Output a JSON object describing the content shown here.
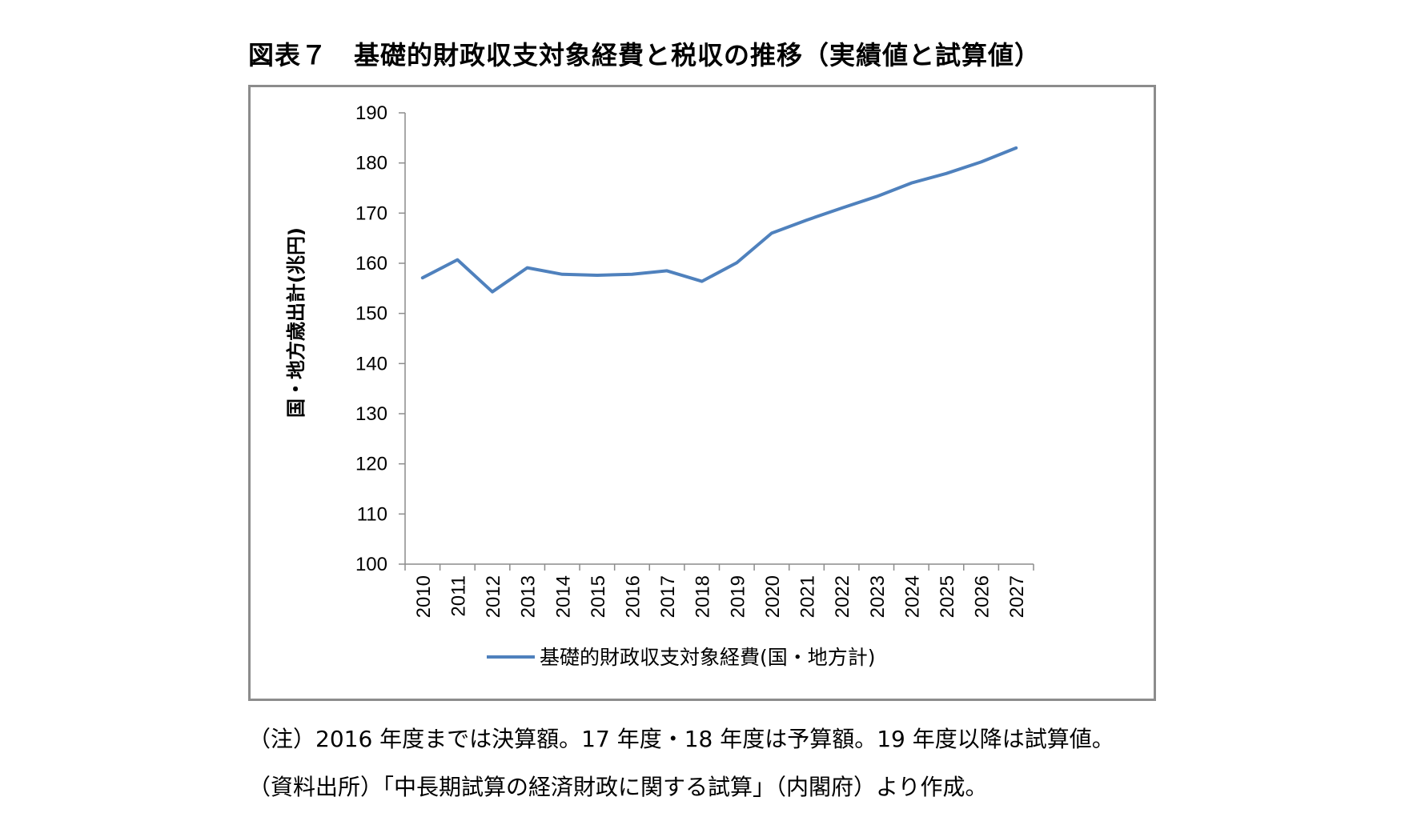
{
  "figure": {
    "title": "図表７　基礎的財政収支対象経費と税収の推移（実績値と試算値）"
  },
  "notes": {
    "note1": "（注）2016 年度までは決算額。17 年度・18 年度は予算額。19 年度以降は試算値。",
    "source": "（資料出所）「中長期試算の経済財政に関する試算」（内閣府）より作成。"
  },
  "colors": {
    "series": "#4f81bd",
    "axis": "#8c8c8c",
    "frame": "#8c8c8c"
  },
  "chart_data": {
    "type": "line",
    "title": "",
    "xlabel": "",
    "ylabel": "国・地方歳出計(兆円)",
    "ylim": [
      100,
      190
    ],
    "yticks": [
      100,
      110,
      120,
      130,
      140,
      150,
      160,
      170,
      180,
      190
    ],
    "grid": false,
    "legend_position": "bottom",
    "x": [
      "2010",
      "2011",
      "2012",
      "2013",
      "2014",
      "2015",
      "2016",
      "2017",
      "2018",
      "2019",
      "2020",
      "2021",
      "2022",
      "2023",
      "2024",
      "2025",
      "2026",
      "2027"
    ],
    "series": [
      {
        "name": "基礎的財政収支対象経費(国・地方計)",
        "values": [
          157.1,
          160.7,
          154.3,
          159.1,
          157.8,
          157.6,
          157.8,
          158.5,
          156.4,
          160.1,
          166.0,
          168.6,
          171.0,
          173.3,
          176.0,
          177.9,
          180.2,
          183.0
        ]
      }
    ]
  }
}
